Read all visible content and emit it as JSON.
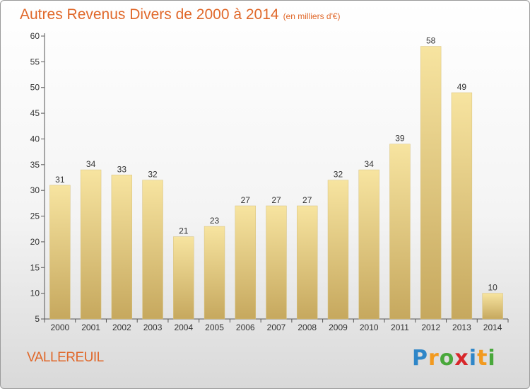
{
  "title": "Autres Revenus Divers de 2000 à 2014",
  "subtitle": "(en milliers d'€)",
  "commune": "VALLEREUIL",
  "logo": {
    "letters": [
      "P",
      "r",
      "o",
      "x",
      "i",
      "t",
      "i"
    ],
    "colors": [
      "#2e86c8",
      "#f29a1f",
      "#49a83b",
      "#d8262a",
      "#2e86c8",
      "#f29a1f",
      "#49a83b"
    ]
  },
  "chart_data": {
    "type": "bar",
    "title": "Autres Revenus Divers de 2000 à 2014",
    "xlabel": "",
    "ylabel": "",
    "categories": [
      "2000",
      "2001",
      "2002",
      "2003",
      "2004",
      "2005",
      "2006",
      "2007",
      "2008",
      "2009",
      "2010",
      "2011",
      "2012",
      "2013",
      "2014"
    ],
    "values": [
      31,
      34,
      33,
      32,
      21,
      23,
      27,
      27,
      27,
      32,
      34,
      39,
      58,
      49,
      10
    ],
    "ylim": [
      5,
      60
    ],
    "yticks": [
      5,
      10,
      15,
      20,
      25,
      30,
      35,
      40,
      45,
      50,
      55,
      60
    ],
    "grid": false,
    "bar_color_top": "#f7e4a0",
    "bar_color_bottom": "#c6a85e"
  }
}
